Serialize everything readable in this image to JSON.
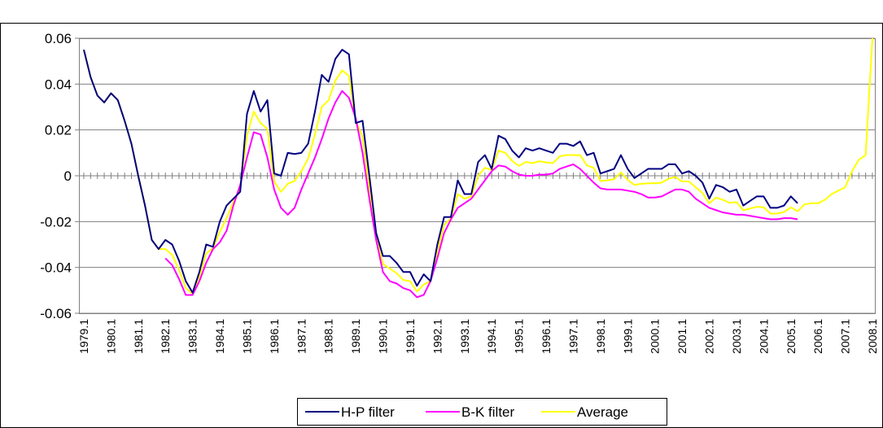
{
  "chart_data": {
    "type": "line",
    "categories": [
      "1979.1",
      null,
      null,
      null,
      "1980.1",
      null,
      null,
      null,
      "1981.1",
      null,
      null,
      null,
      "1982.1",
      null,
      null,
      null,
      "1983.1",
      null,
      null,
      null,
      "1984.1",
      null,
      null,
      null,
      "1985.1",
      null,
      null,
      null,
      "1986.1",
      null,
      null,
      null,
      "1987.1",
      null,
      null,
      null,
      "1988.1",
      null,
      null,
      null,
      "1989.1",
      null,
      null,
      null,
      "1990.1",
      null,
      null,
      null,
      "1991.1",
      null,
      null,
      null,
      "1992.1",
      null,
      null,
      null,
      "1993.1",
      null,
      null,
      null,
      "1994.1",
      null,
      null,
      null,
      "1995.1",
      null,
      null,
      null,
      "1996.1",
      null,
      null,
      null,
      "1997.1",
      null,
      null,
      null,
      "1998.1",
      null,
      null,
      null,
      "1999.1",
      null,
      null,
      null,
      "2000.1",
      null,
      null,
      null,
      "2001.1",
      null,
      null,
      null,
      "2002.1",
      null,
      null,
      null,
      "2003.1",
      null,
      null,
      null,
      "2004.1",
      null,
      null,
      null,
      "2005.1",
      null,
      null,
      null,
      "2006.1",
      null,
      null,
      null,
      "2007.1",
      null,
      null,
      null,
      "2008.1"
    ],
    "series": [
      {
        "name": "H-P filter",
        "color": "#000080",
        "values": [
          0.055,
          0.043,
          0.035,
          0.032,
          0.036,
          0.033,
          0.024,
          0.014,
          0.0,
          -0.013,
          -0.028,
          -0.032,
          -0.028,
          -0.03,
          -0.037,
          -0.046,
          -0.051,
          -0.042,
          -0.03,
          -0.031,
          -0.02,
          -0.013,
          -0.01,
          -0.007,
          0.027,
          0.037,
          0.028,
          0.033,
          0.001,
          0.0,
          0.01,
          0.0095,
          0.01,
          0.014,
          0.028,
          0.044,
          0.041,
          0.051,
          0.055,
          0.053,
          0.023,
          0.024,
          0.0,
          -0.025,
          -0.035,
          -0.035,
          -0.038,
          -0.042,
          -0.042,
          -0.048,
          -0.043,
          -0.046,
          -0.03,
          -0.018,
          -0.018,
          -0.002,
          -0.008,
          -0.008,
          0.006,
          0.009,
          0.003,
          0.0175,
          0.016,
          0.011,
          0.008,
          0.012,
          0.011,
          0.012,
          0.011,
          0.01,
          0.014,
          0.014,
          0.013,
          0.015,
          0.009,
          0.01,
          0.001,
          0.002,
          0.003,
          0.009,
          0.003,
          -0.001,
          0.001,
          0.003,
          0.003,
          0.003,
          0.005,
          0.005,
          0.001,
          0.002,
          0.0,
          -0.003,
          -0.01,
          -0.004,
          -0.005,
          -0.007,
          -0.006,
          -0.013,
          -0.011,
          -0.009,
          -0.009,
          -0.014,
          -0.014,
          -0.013,
          -0.009,
          -0.012,
          null,
          null,
          null,
          null,
          null,
          null,
          null,
          null,
          null,
          null,
          null
        ]
      },
      {
        "name": "B-K filter",
        "color": "#ff00ff",
        "values": [
          null,
          null,
          null,
          null,
          null,
          null,
          null,
          null,
          null,
          null,
          null,
          null,
          -0.036,
          -0.039,
          -0.045,
          -0.052,
          -0.052,
          -0.046,
          -0.038,
          -0.032,
          -0.029,
          -0.024,
          -0.013,
          -0.004,
          0.008,
          0.019,
          0.018,
          0.008,
          -0.006,
          -0.014,
          -0.017,
          -0.014,
          -0.006,
          0.001,
          0.008,
          0.016,
          0.025,
          0.032,
          0.037,
          0.034,
          0.025,
          0.01,
          -0.01,
          -0.028,
          -0.042,
          -0.046,
          -0.047,
          -0.049,
          -0.05,
          -0.053,
          -0.052,
          -0.046,
          -0.036,
          -0.025,
          -0.019,
          -0.014,
          -0.012,
          -0.01,
          -0.006,
          -0.002,
          0.002,
          0.0045,
          0.004,
          0.002,
          0.0005,
          0.0,
          0.0,
          0.0005,
          0.0005,
          0.001,
          0.003,
          0.004,
          0.005,
          0.003,
          0.0,
          -0.003,
          -0.0055,
          -0.006,
          -0.006,
          -0.006,
          -0.0065,
          -0.007,
          -0.008,
          -0.0095,
          -0.0095,
          -0.009,
          -0.0075,
          -0.006,
          -0.006,
          -0.007,
          -0.01,
          -0.012,
          -0.014,
          -0.015,
          -0.016,
          -0.0165,
          -0.017,
          -0.017,
          -0.0175,
          -0.018,
          -0.0185,
          -0.019,
          -0.019,
          -0.0185,
          -0.0185,
          -0.019,
          null,
          null,
          null,
          null,
          null,
          null,
          null,
          null,
          null,
          null,
          null
        ]
      },
      {
        "name": "Average",
        "color": "#ffff00",
        "values": [
          0.055,
          0.043,
          0.035,
          0.032,
          0.036,
          0.033,
          0.024,
          0.014,
          0.0,
          -0.013,
          -0.028,
          -0.032,
          -0.032,
          -0.0345,
          -0.041,
          -0.049,
          -0.0515,
          -0.044,
          -0.034,
          -0.0315,
          -0.0245,
          -0.0185,
          -0.0115,
          -0.0055,
          0.0175,
          0.028,
          0.023,
          0.0205,
          -0.0025,
          -0.007,
          -0.0035,
          -0.0023,
          0.002,
          0.0075,
          0.018,
          0.03,
          0.033,
          0.0415,
          0.046,
          0.0435,
          0.024,
          0.017,
          -0.005,
          -0.0265,
          -0.0385,
          -0.0405,
          -0.0425,
          -0.0455,
          -0.046,
          -0.0505,
          -0.0475,
          -0.046,
          -0.033,
          -0.0215,
          -0.0185,
          -0.008,
          -0.01,
          -0.009,
          0.0,
          0.0035,
          0.0025,
          0.011,
          0.01,
          0.0065,
          0.0043,
          0.006,
          0.0055,
          0.0063,
          0.0058,
          0.0055,
          0.0085,
          0.009,
          0.009,
          0.009,
          0.0045,
          0.0035,
          -0.0023,
          -0.002,
          -0.0015,
          0.0015,
          -0.0018,
          -0.004,
          -0.0035,
          -0.0033,
          -0.0033,
          -0.003,
          -0.0013,
          -0.0005,
          -0.0025,
          -0.0025,
          -0.005,
          -0.0075,
          -0.012,
          -0.0095,
          -0.0105,
          -0.0118,
          -0.0115,
          -0.015,
          -0.0143,
          -0.0135,
          -0.0138,
          -0.0165,
          -0.0165,
          -0.0158,
          -0.0138,
          -0.0155,
          -0.0125,
          -0.012,
          -0.012,
          -0.0105,
          -0.008,
          -0.0065,
          -0.005,
          0.002,
          0.007,
          0.009,
          0.06
        ]
      }
    ],
    "ylim": [
      -0.06,
      0.06
    ],
    "yticks": [
      0.06,
      0.04,
      0.02,
      0,
      -0.02,
      -0.04,
      -0.06
    ],
    "grid": true,
    "legend": "bottom"
  }
}
